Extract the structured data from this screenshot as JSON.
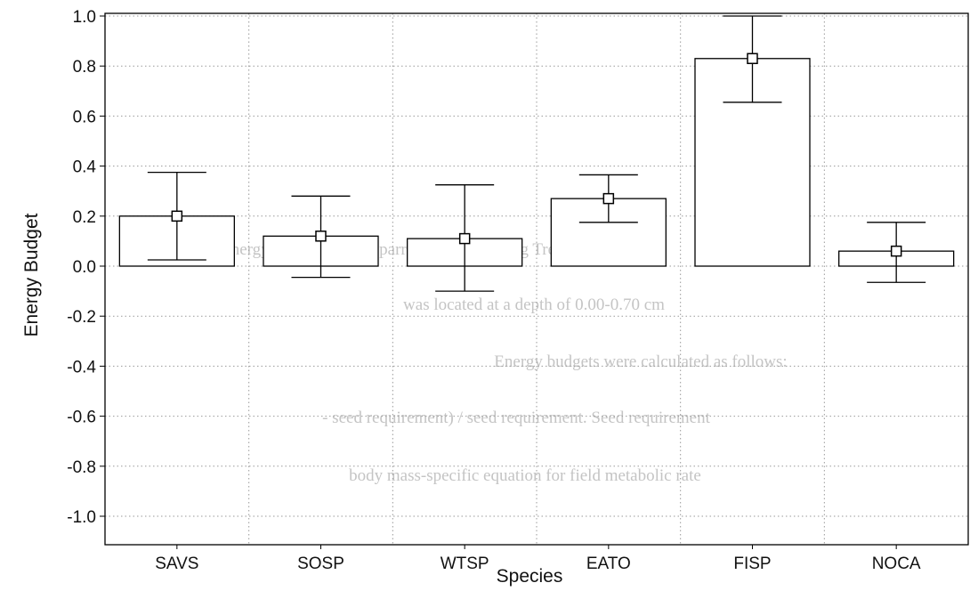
{
  "chart_data": {
    "type": "bar",
    "title": "",
    "xlabel": "Species",
    "ylabel": "Energy Budget",
    "ylim": [
      -1.05,
      1.0
    ],
    "yticks": [
      1.0,
      0.8,
      0.6,
      0.4,
      0.2,
      0.0,
      -0.2,
      -0.4,
      -0.6,
      -0.8,
      -1.0
    ],
    "ytick_labels": [
      "1.0",
      "0.8",
      "0.6",
      "0.4",
      "0.2",
      "0.0",
      "-0.2",
      "-0.4",
      "-0.6",
      "-0.8",
      "-1.0"
    ],
    "categories": [
      "SAVS",
      "SOSP",
      "WTSP",
      "EATO",
      "FISP",
      "NOCA"
    ],
    "values": [
      0.2,
      0.12,
      0.11,
      0.27,
      0.83,
      0.06
    ],
    "error_low": [
      0.025,
      -0.045,
      -0.1,
      0.175,
      0.655,
      -0.065
    ],
    "error_high": [
      0.375,
      0.28,
      0.325,
      0.365,
      1.0,
      0.175
    ],
    "grid": true,
    "marker": "open-square",
    "bar_color": "#ffffff",
    "edge_color": "#000000"
  },
  "bleed_through_lines": [
    "2 for 24-hour energy budgets of six sparrow species during Treatment 2.",
    "was located at a depth of 0.00-0.70 cm",
    "Energy budgets were calculated as follows:",
    "- seed requirement) / seed requirement.  Seed requirement",
    "body mass-specific equation for field metabolic rate"
  ]
}
